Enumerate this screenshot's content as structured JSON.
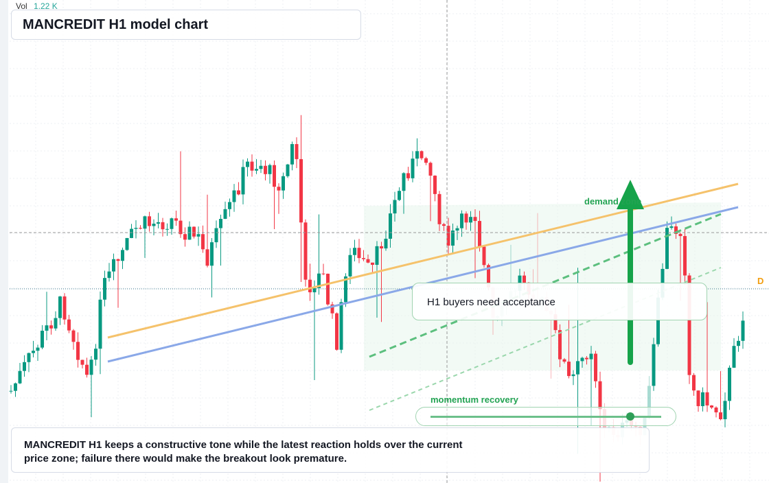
{
  "header": {
    "vol_label": "Vol",
    "vol_value": "1.22 K",
    "title": "MANCREDIT H1 model chart"
  },
  "annotations": {
    "demand_zone": "demand zone",
    "callout": "H1 buyers need acceptance",
    "momentum": "momentum recovery",
    "edge_badge": "D"
  },
  "summary": "MANCREDIT H1 keeps a constructive tone while the latest reaction holds over the current price zone; failure there would make the breakout look premature."
}
